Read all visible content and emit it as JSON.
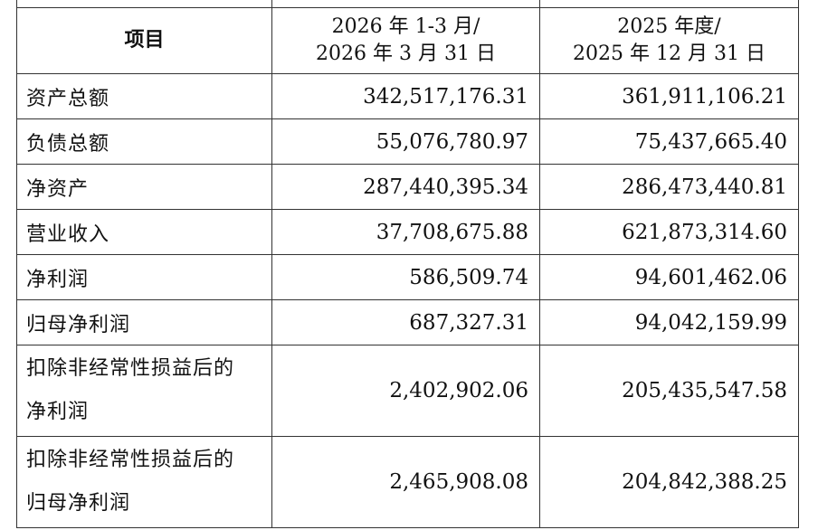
{
  "table": {
    "header": {
      "item": "项目",
      "col2_line1": "2026 年 1-3 月/",
      "col2_line2": "2026 年 3 月 31 日",
      "col3_line1": "2025 年度/",
      "col3_line2": "2025 年 12 月 31 日"
    },
    "rows": [
      {
        "label": "资产总额",
        "v2026": "342,517,176.31",
        "v2025": "361,911,106.21"
      },
      {
        "label": "负债总额",
        "v2026": "55,076,780.97",
        "v2025": "75,437,665.40"
      },
      {
        "label": "净资产",
        "v2026": "287,440,395.34",
        "v2025": "286,473,440.81"
      },
      {
        "label": "营业收入",
        "v2026": "37,708,675.88",
        "v2025": "621,873,314.60"
      },
      {
        "label": "净利润",
        "v2026": "586,509.74",
        "v2025": "94,601,462.06"
      },
      {
        "label": "归母净利润",
        "v2026": "687,327.31",
        "v2025": "94,042,159.99"
      },
      {
        "label_line1": "扣除非经常性损益后的",
        "label_line2": "净利润",
        "v2026": "2,402,902.06",
        "v2025": "205,435,547.58"
      },
      {
        "label_line1": "扣除非经常性损益后的",
        "label_line2": "归母净利润",
        "v2026": "2,465,908.08",
        "v2025": "204,842,388.25"
      }
    ]
  }
}
